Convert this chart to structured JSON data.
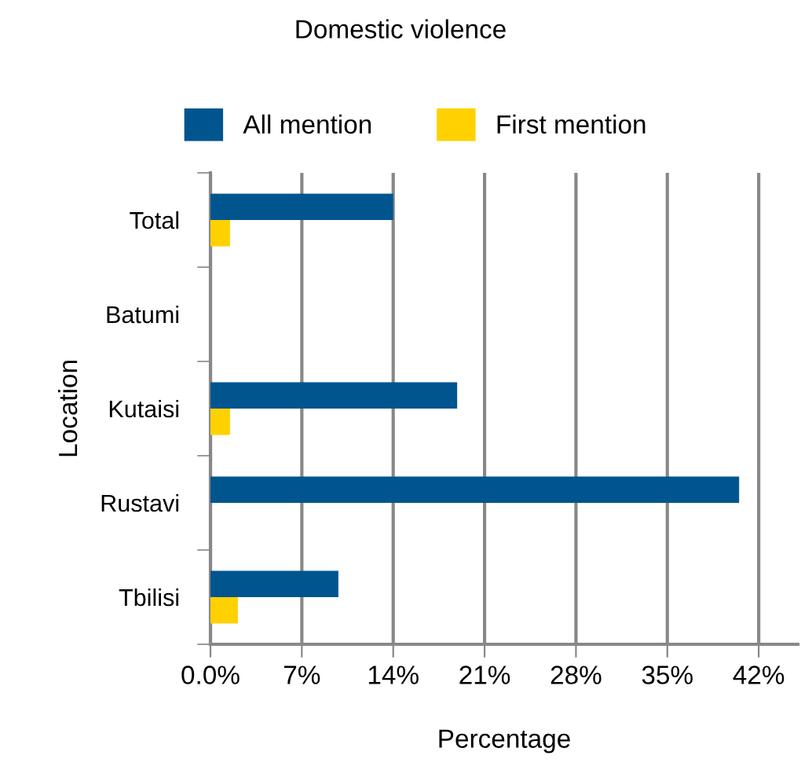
{
  "chart_data": {
    "type": "bar",
    "orientation": "horizontal",
    "title": "Domestic violence",
    "xlabel": "Percentage",
    "ylabel": "Location",
    "categories": [
      "Total",
      "Batumi",
      "Kutaisi",
      "Rustavi",
      "Tbilisi"
    ],
    "series": [
      {
        "name": "All mention",
        "color": "#00558f",
        "values": [
          14.0,
          null,
          18.9,
          40.5,
          9.8
        ]
      },
      {
        "name": "First mention",
        "color": "#ffd100",
        "values": [
          1.5,
          null,
          1.5,
          null,
          2.1
        ]
      }
    ],
    "xlim": [
      0,
      45
    ],
    "xticks": [
      {
        "value": 0,
        "label": "0.0%"
      },
      {
        "value": 7,
        "label": "7%"
      },
      {
        "value": 14,
        "label": "14%"
      },
      {
        "value": 21,
        "label": "21%"
      },
      {
        "value": 28,
        "label": "28%"
      },
      {
        "value": 35,
        "label": "35%"
      },
      {
        "value": 42,
        "label": "42%"
      }
    ],
    "grid": "x",
    "legend": "top"
  }
}
